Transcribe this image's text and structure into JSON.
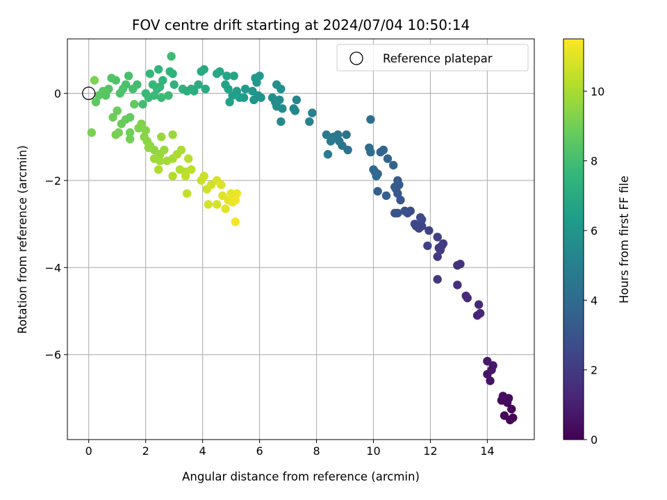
{
  "chart_data": {
    "type": "scatter",
    "title": "FOV centre drift starting at 2024/07/04 10:50:14",
    "xlabel": "Angular distance from reference (arcmin)",
    "ylabel": "Rotation from reference (arcmin)",
    "xlim": [
      -0.75,
      15.65
    ],
    "ylim": [
      -7.95,
      1.25
    ],
    "xticks": [
      0,
      2,
      4,
      6,
      8,
      10,
      12,
      14
    ],
    "yticks": [
      0,
      -2,
      -4,
      -6
    ],
    "grid": true,
    "legend": {
      "placement": "top-right",
      "entries": [
        "Reference platepar"
      ]
    },
    "reference_point": {
      "x": 0,
      "y": 0
    },
    "colorbar": {
      "label": "Hours from first FF file",
      "min": 0,
      "max": 11.5,
      "ticks": [
        0,
        2,
        4,
        6,
        8,
        10
      ],
      "colormap": "viridis",
      "colors": [
        "#440154",
        "#482878",
        "#3e4989",
        "#31688e",
        "#26828e",
        "#1f9e89",
        "#35b779",
        "#6ece58",
        "#b5de2b",
        "#fde725"
      ]
    },
    "point_color_value_name": "hours",
    "points": [
      {
        "x": 14.8,
        "y": -7.5,
        "hours": 0.05
      },
      {
        "x": 14.9,
        "y": -7.45,
        "hours": 0.1
      },
      {
        "x": 14.6,
        "y": -7.4,
        "hours": 0.15
      },
      {
        "x": 14.85,
        "y": -7.25,
        "hours": 0.2
      },
      {
        "x": 14.7,
        "y": -7.1,
        "hours": 0.25
      },
      {
        "x": 14.5,
        "y": -7.05,
        "hours": 0.3
      },
      {
        "x": 14.75,
        "y": -7.0,
        "hours": 0.35
      },
      {
        "x": 14.55,
        "y": -6.95,
        "hours": 0.4
      },
      {
        "x": 14.1,
        "y": -6.6,
        "hours": 0.6
      },
      {
        "x": 14.0,
        "y": -6.45,
        "hours": 0.65
      },
      {
        "x": 14.15,
        "y": -6.35,
        "hours": 0.7
      },
      {
        "x": 14.2,
        "y": -6.25,
        "hours": 0.75
      },
      {
        "x": 14.0,
        "y": -6.15,
        "hours": 0.8
      },
      {
        "x": 13.65,
        "y": -5.1,
        "hours": 1.2
      },
      {
        "x": 13.75,
        "y": -5.05,
        "hours": 1.25
      },
      {
        "x": 13.7,
        "y": -4.85,
        "hours": 1.3
      },
      {
        "x": 13.3,
        "y": -4.7,
        "hours": 1.4
      },
      {
        "x": 13.25,
        "y": -4.65,
        "hours": 1.45
      },
      {
        "x": 12.95,
        "y": -4.4,
        "hours": 1.55
      },
      {
        "x": 12.95,
        "y": -3.95,
        "hours": 1.65
      },
      {
        "x": 13.05,
        "y": -3.92,
        "hours": 1.7
      },
      {
        "x": 12.25,
        "y": -4.27,
        "hours": 1.85
      },
      {
        "x": 12.25,
        "y": -3.75,
        "hours": 1.9
      },
      {
        "x": 12.3,
        "y": -3.55,
        "hours": 1.95
      },
      {
        "x": 12.4,
        "y": -3.5,
        "hours": 2.0
      },
      {
        "x": 12.35,
        "y": -3.6,
        "hours": 2.05
      },
      {
        "x": 12.45,
        "y": -3.45,
        "hours": 2.1
      },
      {
        "x": 12.25,
        "y": -3.3,
        "hours": 2.15
      },
      {
        "x": 11.9,
        "y": -3.5,
        "hours": 2.25
      },
      {
        "x": 11.95,
        "y": -3.15,
        "hours": 2.3
      },
      {
        "x": 11.7,
        "y": -3.05,
        "hours": 2.35
      },
      {
        "x": 11.6,
        "y": -3.1,
        "hours": 2.4
      },
      {
        "x": 11.5,
        "y": -3.05,
        "hours": 2.45
      },
      {
        "x": 11.45,
        "y": -3.0,
        "hours": 2.5
      },
      {
        "x": 11.7,
        "y": -2.9,
        "hours": 2.55
      },
      {
        "x": 11.65,
        "y": -2.85,
        "hours": 2.6
      },
      {
        "x": 11.3,
        "y": -2.7,
        "hours": 2.75
      },
      {
        "x": 11.2,
        "y": -2.75,
        "hours": 2.8
      },
      {
        "x": 11.1,
        "y": -2.7,
        "hours": 2.85
      },
      {
        "x": 10.85,
        "y": -2.75,
        "hours": 2.95
      },
      {
        "x": 10.75,
        "y": -2.75,
        "hours": 3.0
      },
      {
        "x": 10.95,
        "y": -2.45,
        "hours": 3.1
      },
      {
        "x": 10.85,
        "y": -2.3,
        "hours": 3.15
      },
      {
        "x": 10.8,
        "y": -2.2,
        "hours": 3.2
      },
      {
        "x": 10.9,
        "y": -2.1,
        "hours": 3.25
      },
      {
        "x": 10.85,
        "y": -2.0,
        "hours": 3.3
      },
      {
        "x": 10.75,
        "y": -2.15,
        "hours": 3.35
      },
      {
        "x": 10.45,
        "y": -2.35,
        "hours": 3.45
      },
      {
        "x": 10.15,
        "y": -2.25,
        "hours": 3.5
      },
      {
        "x": 10.7,
        "y": -1.65,
        "hours": 3.6
      },
      {
        "x": 10.5,
        "y": -1.5,
        "hours": 3.65
      },
      {
        "x": 10.35,
        "y": -1.3,
        "hours": 3.7
      },
      {
        "x": 10.25,
        "y": -1.35,
        "hours": 3.75
      },
      {
        "x": 10.15,
        "y": -1.85,
        "hours": 3.8
      },
      {
        "x": 10.05,
        "y": -1.8,
        "hours": 3.85
      },
      {
        "x": 10.0,
        "y": -1.75,
        "hours": 3.9
      },
      {
        "x": 10.1,
        "y": -1.9,
        "hours": 3.95
      },
      {
        "x": 9.9,
        "y": -1.35,
        "hours": 4.05
      },
      {
        "x": 9.85,
        "y": -1.25,
        "hours": 4.1
      },
      {
        "x": 9.9,
        "y": -0.6,
        "hours": 4.2
      },
      {
        "x": 9.1,
        "y": -1.3,
        "hours": 4.35
      },
      {
        "x": 9.05,
        "y": -0.95,
        "hours": 4.4
      },
      {
        "x": 8.9,
        "y": -1.2,
        "hours": 4.45
      },
      {
        "x": 8.8,
        "y": -1.1,
        "hours": 4.5
      },
      {
        "x": 8.75,
        "y": -0.95,
        "hours": 4.55
      },
      {
        "x": 8.6,
        "y": -1.0,
        "hours": 4.6
      },
      {
        "x": 8.5,
        "y": -1.1,
        "hours": 4.65
      },
      {
        "x": 8.35,
        "y": -0.95,
        "hours": 4.7
      },
      {
        "x": 8.4,
        "y": -1.4,
        "hours": 4.75
      },
      {
        "x": 7.85,
        "y": -0.45,
        "hours": 5.0
      },
      {
        "x": 7.75,
        "y": -0.65,
        "hours": 5.05
      },
      {
        "x": 7.25,
        "y": -0.4,
        "hours": 5.2
      },
      {
        "x": 7.2,
        "y": -0.35,
        "hours": 5.25
      },
      {
        "x": 7.3,
        "y": -0.15,
        "hours": 5.3
      },
      {
        "x": 6.75,
        "y": -0.65,
        "hours": 5.45
      },
      {
        "x": 6.8,
        "y": -0.35,
        "hours": 5.5
      },
      {
        "x": 6.6,
        "y": -0.3,
        "hours": 5.55
      },
      {
        "x": 6.55,
        "y": -0.2,
        "hours": 5.6
      },
      {
        "x": 6.7,
        "y": -0.15,
        "hours": 5.65
      },
      {
        "x": 6.45,
        "y": -0.1,
        "hours": 5.7
      },
      {
        "x": 6.75,
        "y": 0.1,
        "hours": 5.75
      },
      {
        "x": 6.6,
        "y": 0.2,
        "hours": 5.8
      },
      {
        "x": 6.05,
        "y": -0.1,
        "hours": 5.9
      },
      {
        "x": 5.95,
        "y": -0.05,
        "hours": 5.95
      },
      {
        "x": 5.8,
        "y": -0.15,
        "hours": 6.0
      },
      {
        "x": 5.75,
        "y": 0.05,
        "hours": 6.05
      },
      {
        "x": 5.9,
        "y": 0.25,
        "hours": 6.1
      },
      {
        "x": 6.0,
        "y": 0.4,
        "hours": 6.15
      },
      {
        "x": 5.85,
        "y": 0.35,
        "hours": 6.2
      },
      {
        "x": 5.5,
        "y": 0.1,
        "hours": 6.3
      },
      {
        "x": 5.45,
        "y": -0.1,
        "hours": 6.35
      },
      {
        "x": 5.3,
        "y": -0.1,
        "hours": 6.4
      },
      {
        "x": 5.2,
        "y": 0.05,
        "hours": 6.45
      },
      {
        "x": 5.05,
        "y": -0.05,
        "hours": 6.5
      },
      {
        "x": 4.95,
        "y": -0.2,
        "hours": 6.55
      },
      {
        "x": 4.9,
        "y": 0.1,
        "hours": 6.6
      },
      {
        "x": 4.8,
        "y": 0.2,
        "hours": 6.65
      },
      {
        "x": 4.85,
        "y": 0.4,
        "hours": 6.7
      },
      {
        "x": 5.1,
        "y": 0.4,
        "hours": 6.75
      },
      {
        "x": 4.6,
        "y": 0.5,
        "hours": 6.8
      },
      {
        "x": 4.5,
        "y": 0.45,
        "hours": 6.85
      },
      {
        "x": 4.05,
        "y": 0.55,
        "hours": 6.95
      },
      {
        "x": 3.95,
        "y": 0.5,
        "hours": 7.0
      },
      {
        "x": 4.1,
        "y": 0.1,
        "hours": 7.05
      },
      {
        "x": 3.85,
        "y": 0.2,
        "hours": 7.1
      },
      {
        "x": 3.7,
        "y": 0.05,
        "hours": 7.15
      },
      {
        "x": 3.6,
        "y": 0.1,
        "hours": 7.2
      },
      {
        "x": 3.45,
        "y": 0.05,
        "hours": 7.25
      },
      {
        "x": 3.3,
        "y": 0.1,
        "hours": 7.3
      },
      {
        "x": 3.0,
        "y": 0.2,
        "hours": 7.35
      },
      {
        "x": 2.95,
        "y": 0.45,
        "hours": 7.4
      },
      {
        "x": 2.85,
        "y": 0.5,
        "hours": 7.45
      },
      {
        "x": 2.6,
        "y": 0.3,
        "hours": 7.5
      },
      {
        "x": 2.5,
        "y": 0.15,
        "hours": 7.55
      },
      {
        "x": 2.45,
        "y": 0.55,
        "hours": 7.6
      },
      {
        "x": 2.15,
        "y": 0.45,
        "hours": 7.65
      },
      {
        "x": 2.25,
        "y": 0.2,
        "hours": 7.7
      },
      {
        "x": 2.4,
        "y": 0.1,
        "hours": 7.72
      },
      {
        "x": 2.0,
        "y": 0.0,
        "hours": 7.75
      },
      {
        "x": 2.1,
        "y": -0.1,
        "hours": 7.78
      },
      {
        "x": 2.3,
        "y": -0.05,
        "hours": 7.8
      },
      {
        "x": 2.55,
        "y": -0.1,
        "hours": 7.82
      },
      {
        "x": 2.8,
        "y": -0.05,
        "hours": 7.85
      },
      {
        "x": 2.9,
        "y": 0.85,
        "hours": 7.9
      },
      {
        "x": 1.9,
        "y": -0.25,
        "hours": 7.95
      },
      {
        "x": 1.7,
        "y": 0.2,
        "hours": 8.0
      },
      {
        "x": 1.55,
        "y": 0.1,
        "hours": 8.05
      },
      {
        "x": 1.4,
        "y": 0.4,
        "hours": 8.1
      },
      {
        "x": 1.3,
        "y": 0.2,
        "hours": 8.15
      },
      {
        "x": 1.2,
        "y": 0.1,
        "hours": 8.2
      },
      {
        "x": 1.1,
        "y": 0.0,
        "hours": 8.25
      },
      {
        "x": 0.95,
        "y": 0.3,
        "hours": 8.3
      },
      {
        "x": 0.8,
        "y": 0.35,
        "hours": 8.35
      },
      {
        "x": 0.7,
        "y": 0.1,
        "hours": 8.4
      },
      {
        "x": 0.6,
        "y": -0.05,
        "hours": 8.45
      },
      {
        "x": 0.5,
        "y": 0.05,
        "hours": 8.5
      },
      {
        "x": 0.35,
        "y": -0.05,
        "hours": 8.55
      },
      {
        "x": 0.25,
        "y": -0.2,
        "hours": 8.6
      },
      {
        "x": 1.6,
        "y": -0.25,
        "hours": 8.65
      },
      {
        "x": 1.45,
        "y": -0.55,
        "hours": 8.7
      },
      {
        "x": 1.3,
        "y": -0.6,
        "hours": 8.75
      },
      {
        "x": 1.15,
        "y": -0.7,
        "hours": 8.8
      },
      {
        "x": 1.0,
        "y": -0.4,
        "hours": 8.85
      },
      {
        "x": 0.85,
        "y": -0.55,
        "hours": 8.9
      },
      {
        "x": 1.45,
        "y": -0.9,
        "hours": 8.95
      },
      {
        "x": 1.45,
        "y": -1.05,
        "hours": 9.0
      },
      {
        "x": 1.05,
        "y": -0.9,
        "hours": 9.05
      },
      {
        "x": 0.95,
        "y": -0.95,
        "hours": 9.1
      },
      {
        "x": 0.1,
        "y": -0.9,
        "hours": 9.15
      },
      {
        "x": 0.2,
        "y": 0.3,
        "hours": 9.2
      },
      {
        "x": 1.75,
        "y": -0.8,
        "hours": 9.25
      },
      {
        "x": 1.85,
        "y": -0.7,
        "hours": 9.3
      },
      {
        "x": 2.0,
        "y": -0.85,
        "hours": 9.35
      },
      {
        "x": 1.95,
        "y": -1.0,
        "hours": 9.4
      },
      {
        "x": 2.05,
        "y": -1.1,
        "hours": 9.45
      },
      {
        "x": 2.15,
        "y": -1.2,
        "hours": 9.5
      },
      {
        "x": 2.3,
        "y": -1.3,
        "hours": 9.55
      },
      {
        "x": 2.1,
        "y": -1.25,
        "hours": 9.6
      },
      {
        "x": 2.5,
        "y": -1.4,
        "hours": 9.65
      },
      {
        "x": 2.65,
        "y": -1.3,
        "hours": 9.7
      },
      {
        "x": 2.55,
        "y": -1.0,
        "hours": 9.72
      },
      {
        "x": 2.95,
        "y": -0.95,
        "hours": 9.75
      },
      {
        "x": 2.3,
        "y": -1.5,
        "hours": 9.8
      },
      {
        "x": 2.5,
        "y": -1.55,
        "hours": 9.85
      },
      {
        "x": 2.75,
        "y": -1.55,
        "hours": 9.9
      },
      {
        "x": 2.95,
        "y": -1.5,
        "hours": 9.95
      },
      {
        "x": 3.1,
        "y": -1.4,
        "hours": 10.0
      },
      {
        "x": 3.25,
        "y": -1.3,
        "hours": 10.05
      },
      {
        "x": 2.45,
        "y": -1.75,
        "hours": 10.1
      },
      {
        "x": 2.95,
        "y": -1.9,
        "hours": 10.15
      },
      {
        "x": 3.2,
        "y": -1.75,
        "hours": 10.2
      },
      {
        "x": 3.4,
        "y": -1.8,
        "hours": 10.25
      },
      {
        "x": 3.5,
        "y": -1.5,
        "hours": 10.3
      },
      {
        "x": 3.6,
        "y": -1.75,
        "hours": 10.35
      },
      {
        "x": 3.4,
        "y": -1.9,
        "hours": 10.4
      },
      {
        "x": 3.45,
        "y": -2.3,
        "hours": 10.45
      },
      {
        "x": 3.95,
        "y": -2.0,
        "hours": 10.55
      },
      {
        "x": 4.05,
        "y": -1.9,
        "hours": 10.6
      },
      {
        "x": 4.15,
        "y": -2.2,
        "hours": 10.65
      },
      {
        "x": 4.3,
        "y": -2.1,
        "hours": 10.7
      },
      {
        "x": 4.2,
        "y": -2.55,
        "hours": 10.75
      },
      {
        "x": 4.5,
        "y": -2.55,
        "hours": 10.8
      },
      {
        "x": 4.5,
        "y": -2.0,
        "hours": 10.85
      },
      {
        "x": 4.65,
        "y": -2.1,
        "hours": 10.9
      },
      {
        "x": 4.7,
        "y": -2.35,
        "hours": 10.95
      },
      {
        "x": 4.8,
        "y": -2.65,
        "hours": 11.0
      },
      {
        "x": 4.9,
        "y": -2.45,
        "hours": 11.05
      },
      {
        "x": 5.0,
        "y": -2.3,
        "hours": 11.1
      },
      {
        "x": 5.05,
        "y": -2.5,
        "hours": 11.15
      },
      {
        "x": 5.2,
        "y": -2.3,
        "hours": 11.2
      },
      {
        "x": 5.15,
        "y": -2.45,
        "hours": 11.25
      },
      {
        "x": 5.15,
        "y": -2.95,
        "hours": 11.3
      }
    ]
  }
}
